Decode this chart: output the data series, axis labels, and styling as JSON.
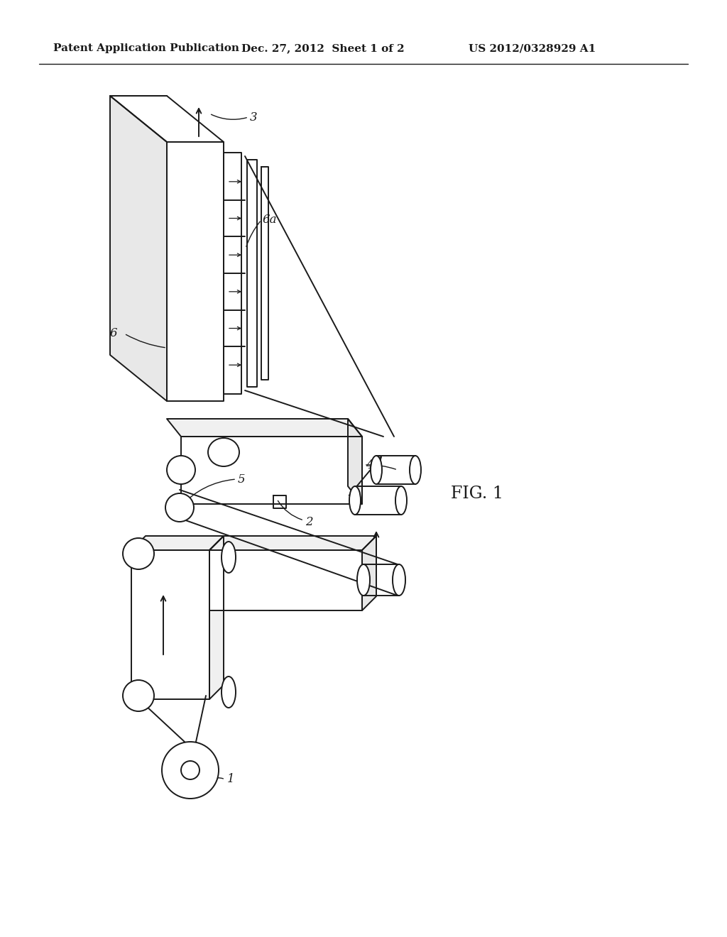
{
  "bg_color": "#ffffff",
  "line_color": "#1a1a1a",
  "header_left": "Patent Application Publication",
  "header_mid": "Dec. 27, 2012  Sheet 1 of 2",
  "header_right": "US 2012/0328929 A1",
  "fig_label": "FIG. 1",
  "lw": 1.4
}
